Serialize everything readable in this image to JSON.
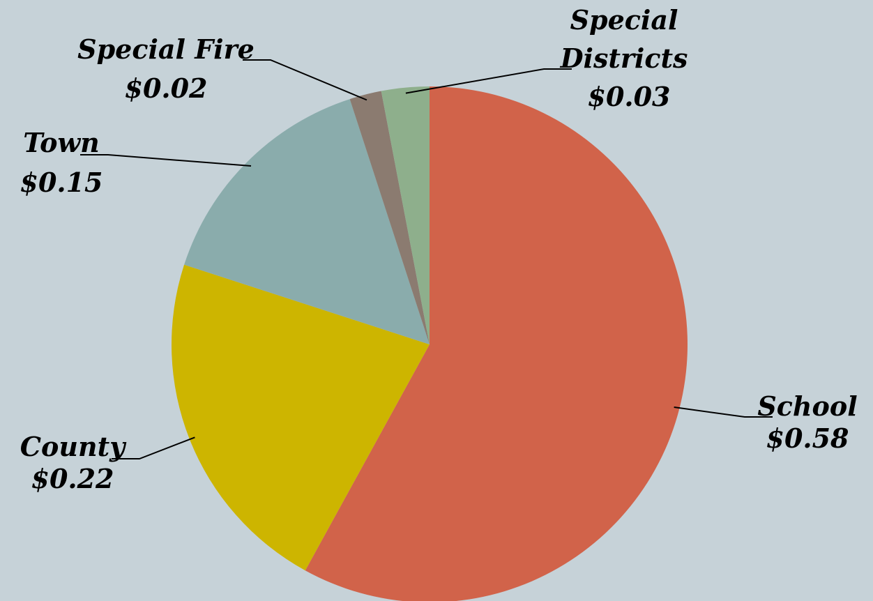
{
  "chart_data": {
    "type": "pie",
    "title": "",
    "start": "12 o'clock",
    "direction": "clockwise",
    "background": "#c6d2d8",
    "slices": [
      {
        "label": "School",
        "value": 0.58,
        "value_label": "$0.58",
        "color": "#d1634a"
      },
      {
        "label": "County",
        "value": 0.22,
        "value_label": "$0.22",
        "color": "#cdb500"
      },
      {
        "label": "Town",
        "value": 0.15,
        "value_label": "$0.15",
        "color": "#8aacac"
      },
      {
        "label": "Special Fire",
        "value": 0.02,
        "value_label": "$0.02",
        "color": "#8b7b70"
      },
      {
        "label": "Special Districts",
        "value": 0.03,
        "value_label": "$0.03",
        "color": "#8eaf8c"
      }
    ]
  }
}
